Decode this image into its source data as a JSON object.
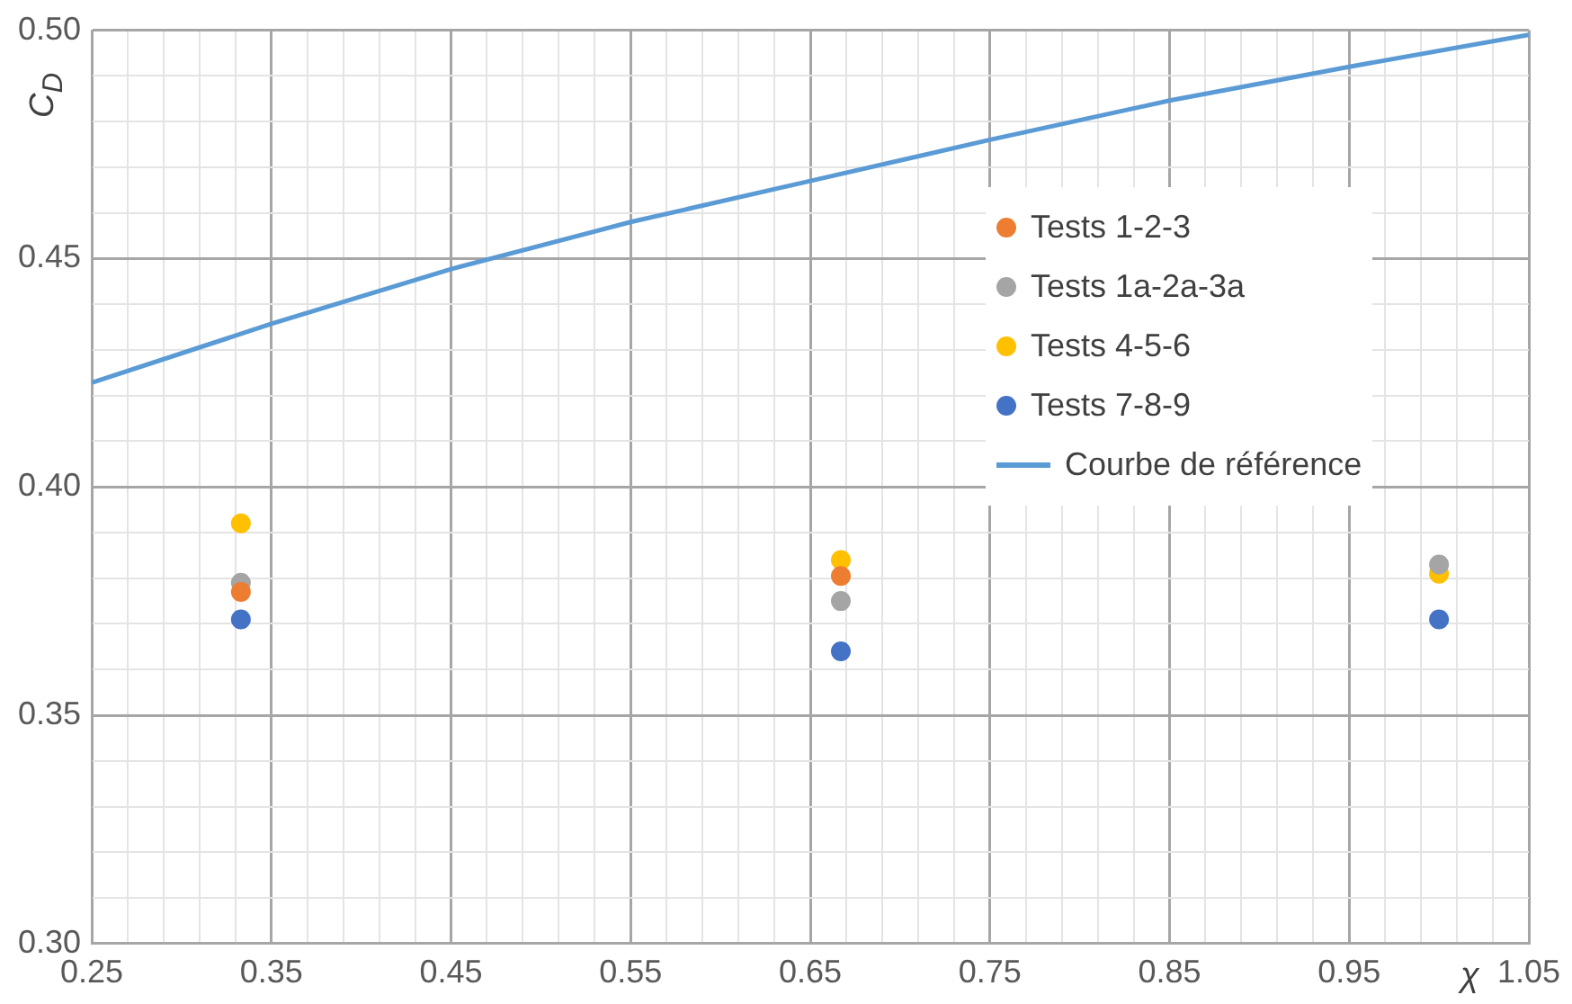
{
  "chart_data": {
    "type": "scatter",
    "xlabel": "χ",
    "ylabel": "C$_{D}$",
    "x": [
      0.333,
      0.667,
      1.0
    ],
    "series": [
      {
        "name": "Tests 1-2-3",
        "color": "#ed7d31",
        "values": [
          0.377,
          0.3805,
          null
        ]
      },
      {
        "name": "Tests 1a-2a-3a",
        "color": "#a5a5a5",
        "values": [
          0.379,
          0.375,
          0.383
        ]
      },
      {
        "name": "Tests 4-5-6",
        "color": "#ffc000",
        "values": [
          0.392,
          0.384,
          0.381
        ]
      },
      {
        "name": "Tests 7-8-9",
        "color": "#4472c4",
        "values": [
          0.371,
          0.364,
          0.371
        ]
      },
      {
        "name": "Courbe de référence",
        "type": "line",
        "color": "#5b9bd5",
        "marker": "none",
        "x": [
          0.25,
          0.35,
          0.45,
          0.55,
          0.65,
          0.75,
          0.85,
          0.95,
          1.05
        ],
        "values": [
          0.4228,
          0.4357,
          0.4477,
          0.458,
          0.467,
          0.476,
          0.4846,
          0.492,
          0.499
        ]
      }
    ],
    "marker": "circle",
    "legend": "right",
    "grid": true,
    "xlim": [
      0.25,
      1.05
    ],
    "ylim": [
      0.3,
      0.5
    ],
    "xticks": [
      0.25,
      {
        "value": 0.27,
        "label": null
      },
      {
        "value": 0.29,
        "label": null
      },
      {
        "value": 0.31,
        "label": null
      },
      {
        "value": 0.33,
        "label": null
      },
      0.35,
      {
        "value": 0.37,
        "label": null
      },
      {
        "value": 0.39,
        "label": null
      },
      {
        "value": 0.41,
        "label": null
      },
      {
        "value": 0.43,
        "label": null
      },
      0.45,
      {
        "value": 0.47,
        "label": null
      },
      {
        "value": 0.49,
        "label": null
      },
      {
        "value": 0.51,
        "label": null
      },
      {
        "value": 0.53,
        "label": null
      },
      0.55,
      {
        "value": 0.57,
        "label": null
      },
      {
        "value": 0.59,
        "label": null
      },
      {
        "value": 0.61,
        "label": null
      },
      {
        "value": 0.63,
        "label": null
      },
      0.65,
      {
        "value": 0.67,
        "label": null
      },
      {
        "value": 0.69,
        "label": null
      },
      {
        "value": 0.71,
        "label": null
      },
      {
        "value": 0.73,
        "label": null
      },
      0.75,
      {
        "value": 0.77,
        "label": null
      },
      {
        "value": 0.79,
        "label": null
      },
      {
        "value": 0.81,
        "label": null
      },
      {
        "value": 0.83,
        "label": null
      },
      0.85,
      {
        "value": 0.87,
        "label": null
      },
      {
        "value": 0.89,
        "label": null
      },
      {
        "value": 0.91,
        "label": null
      },
      {
        "value": 0.93,
        "label": null
      },
      0.95,
      {
        "value": 0.97,
        "label": null
      },
      {
        "value": 0.99,
        "label": null
      },
      {
        "value": 1.01,
        "label": null
      },
      {
        "value": 1.03,
        "label": null
      },
      1.05
    ],
    "yticks": [
      {
        "value": 0.3,
        "label": "0.30"
      },
      {
        "value": 0.31,
        "label": null
      },
      {
        "value": 0.32,
        "label": null
      },
      {
        "value": 0.33,
        "label": null
      },
      {
        "value": 0.34,
        "label": null
      },
      0.35,
      {
        "value": 0.36,
        "label": null
      },
      {
        "value": 0.37,
        "label": null
      },
      {
        "value": 0.38,
        "label": null
      },
      {
        "value": 0.39,
        "label": null
      },
      {
        "value": 0.4,
        "label": "0.40"
      },
      {
        "value": 0.41,
        "label": null
      },
      {
        "value": 0.42,
        "label": null
      },
      {
        "value": 0.43,
        "label": null
      },
      {
        "value": 0.44,
        "label": null
      },
      0.45,
      {
        "value": 0.46,
        "label": null
      },
      {
        "value": 0.47,
        "label": null
      },
      {
        "value": 0.48,
        "label": null
      },
      {
        "value": 0.49,
        "label": null
      },
      {
        "value": 0.5,
        "label": "0.50"
      }
    ]
  }
}
